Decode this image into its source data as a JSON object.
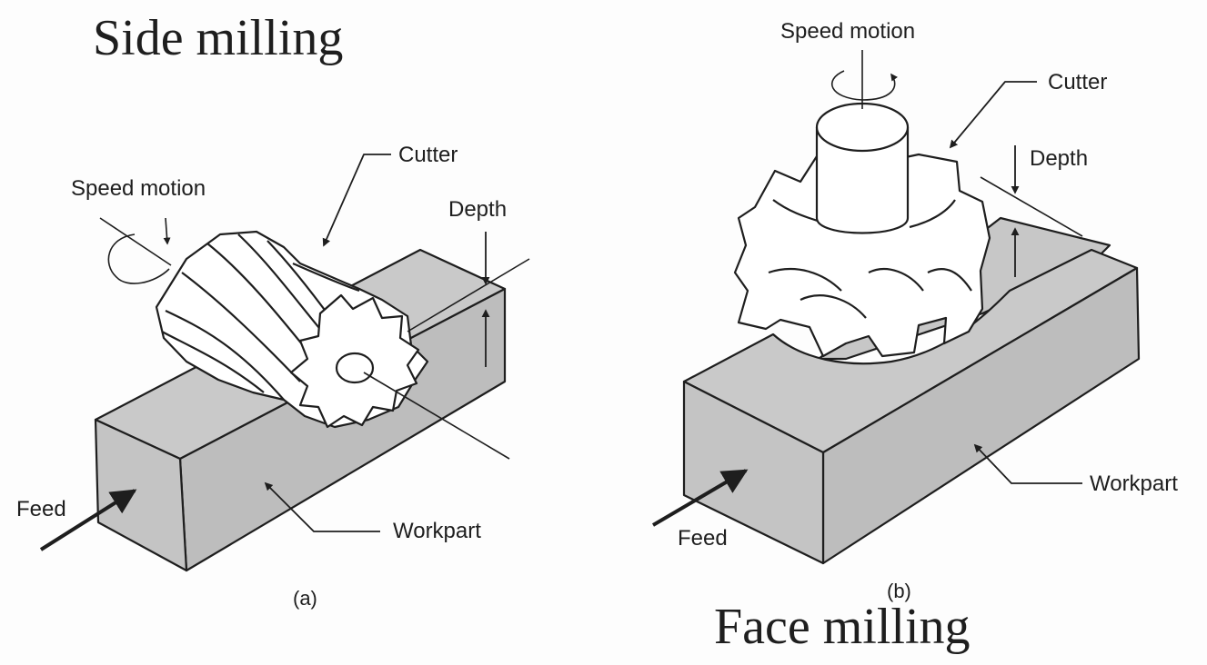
{
  "titles": {
    "left": "Side milling",
    "right": "Face milling"
  },
  "panel_a": {
    "caption": "(a)",
    "speed_label": "Speed motion",
    "cutter_label": "Cutter",
    "depth_label": "Depth",
    "feed_label": "Feed",
    "workpart_label": "Workpart"
  },
  "panel_b": {
    "caption": "(b)",
    "speed_label": "Speed motion",
    "cutter_label": "Cutter",
    "depth_label": "Depth",
    "feed_label": "Feed",
    "workpart_label": "Workpart"
  },
  "colors": {
    "ink": "#1e1e1e",
    "block_top": "#c9c9c9",
    "block_side": "#bdbdbd",
    "block_front": "#c4c4c4",
    "cutter": "#ffffff"
  }
}
